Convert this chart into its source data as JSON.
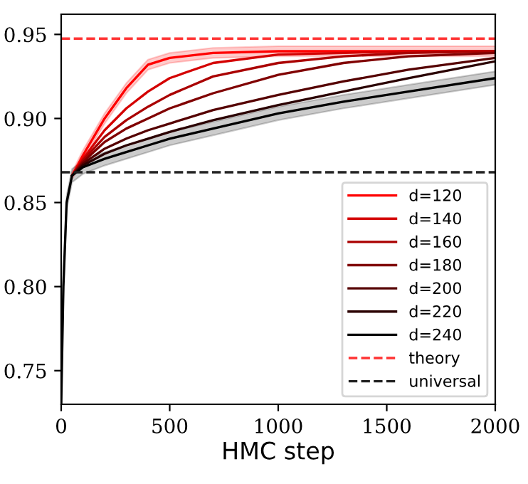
{
  "chart_data": {
    "type": "line",
    "xlabel": "HMC step",
    "x": [
      0,
      10,
      25,
      50,
      100,
      200,
      300,
      400,
      500,
      700,
      1000,
      1300,
      1600,
      2000
    ],
    "xlim": [
      0,
      2000
    ],
    "xticks": [
      0,
      500,
      1000,
      1500,
      2000
    ],
    "ylim": [
      0.73,
      0.962
    ],
    "yticks": [
      {
        "value": 0.75,
        "label": "0.75"
      },
      {
        "value": 0.8,
        "label": "0.80"
      },
      {
        "value": 0.85,
        "label": "0.85"
      },
      {
        "value": 0.9,
        "label": "0.90"
      },
      {
        "value": 0.95,
        "label": "0.95"
      }
    ],
    "grid": false,
    "legend": "bottom right",
    "line_style": "solid",
    "marker": "none",
    "series": [
      {
        "name": "d=120",
        "color": "#ff0000",
        "values": [
          null,
          null,
          null,
          0.866,
          0.878,
          0.9,
          0.918,
          0.932,
          0.936,
          0.939,
          0.94,
          0.94,
          0.94,
          0.94
        ],
        "lower": [
          null,
          null,
          null,
          0.864,
          0.875,
          0.897,
          0.915,
          0.929,
          0.933,
          0.936,
          0.937,
          0.937,
          0.937,
          0.937
        ],
        "upper": [
          null,
          null,
          null,
          0.868,
          0.881,
          0.903,
          0.921,
          0.935,
          0.939,
          0.942,
          0.943,
          0.943,
          0.943,
          0.943
        ]
      },
      {
        "name": "d=140",
        "color": "#d40000",
        "values": [
          null,
          null,
          null,
          0.866,
          0.876,
          0.893,
          0.906,
          0.916,
          0.924,
          0.933,
          0.938,
          0.939,
          0.94,
          0.94
        ]
      },
      {
        "name": "d=160",
        "color": "#aa0000",
        "values": [
          null,
          null,
          null,
          0.866,
          0.875,
          0.889,
          0.899,
          0.907,
          0.914,
          0.925,
          0.933,
          0.937,
          0.939,
          0.94
        ]
      },
      {
        "name": "d=180",
        "color": "#800000",
        "values": [
          null,
          null,
          null,
          0.866,
          0.874,
          0.886,
          0.894,
          0.9,
          0.906,
          0.915,
          0.926,
          0.933,
          0.937,
          0.939
        ]
      },
      {
        "name": "d=200",
        "color": "#550000",
        "values": [
          null,
          null,
          null,
          0.866,
          0.873,
          0.882,
          0.888,
          0.893,
          0.897,
          0.905,
          0.914,
          0.922,
          0.929,
          0.936
        ]
      },
      {
        "name": "d=220",
        "color": "#2a0000",
        "values": [
          null,
          null,
          null,
          0.866,
          0.872,
          0.879,
          0.884,
          0.888,
          0.892,
          0.899,
          0.908,
          0.916,
          0.924,
          0.934
        ]
      },
      {
        "name": "d=240",
        "color": "#000000",
        "values": [
          0.73,
          0.8,
          0.85,
          0.866,
          0.871,
          0.876,
          0.88,
          0.884,
          0.888,
          0.894,
          0.903,
          0.91,
          0.916,
          0.924
        ],
        "lower": [
          0.73,
          0.796,
          0.846,
          0.862,
          0.867,
          0.872,
          0.876,
          0.88,
          0.884,
          0.89,
          0.899,
          0.906,
          0.912,
          0.92
        ],
        "upper": [
          0.73,
          0.804,
          0.854,
          0.87,
          0.875,
          0.88,
          0.884,
          0.888,
          0.892,
          0.898,
          0.907,
          0.914,
          0.92,
          0.928
        ]
      }
    ],
    "ref_lines": [
      {
        "axis": "y",
        "value": 0.9475,
        "label": "theory",
        "color": "#ff3333",
        "line_style": "dashed"
      },
      {
        "axis": "y",
        "value": 0.868,
        "label": "universal",
        "color": "#222222",
        "line_style": "dashed"
      }
    ]
  }
}
